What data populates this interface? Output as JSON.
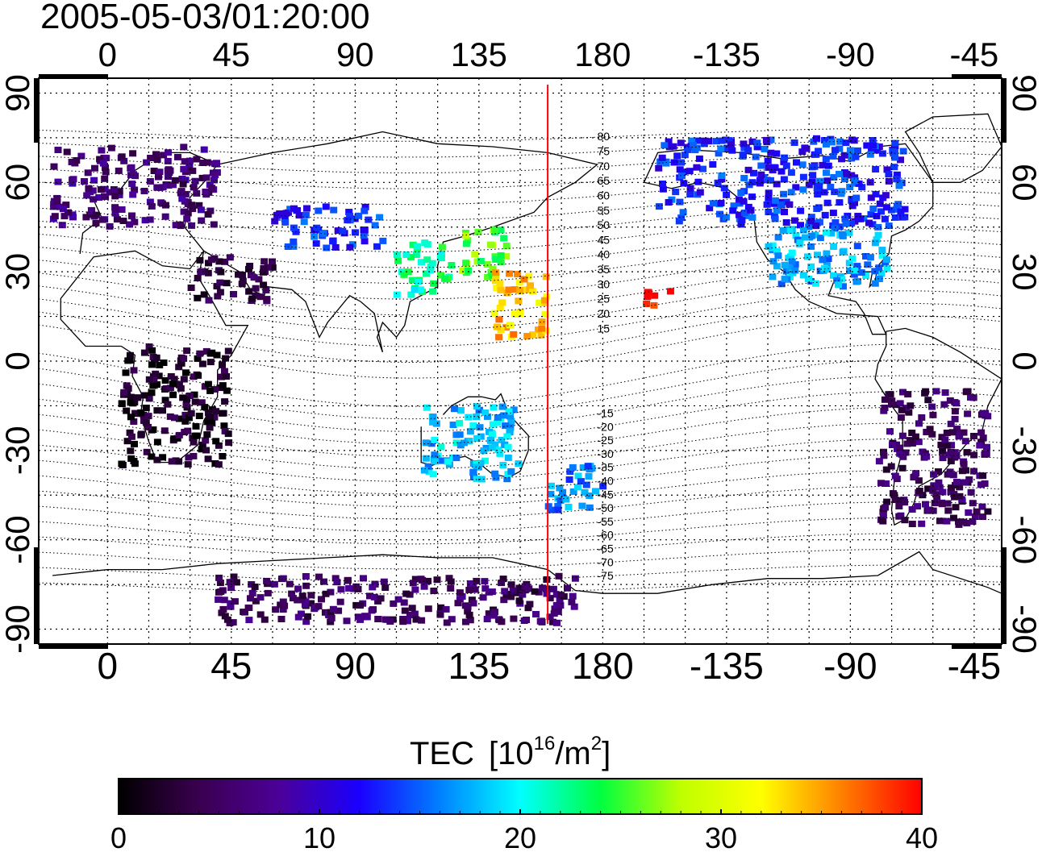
{
  "timestamp": "2005-05-03/01:20:00",
  "lon_ticks": [
    "0",
    "45",
    "90",
    "135",
    "180",
    "-135",
    "-90",
    "-45"
  ],
  "lat_ticks": [
    "90",
    "60",
    "30",
    "0",
    "-30",
    "-60",
    "-90"
  ],
  "mag_lat_labels_north": [
    "80",
    "75",
    "70",
    "65",
    "60",
    "55",
    "50",
    "45",
    "40",
    "35",
    "30",
    "25",
    "20",
    "15"
  ],
  "mag_lat_labels_south": [
    "-15",
    "-20",
    "-25",
    "-30",
    "-35",
    "-40",
    "-45",
    "-50",
    "-55",
    "-60",
    "-65",
    "-70",
    "-75"
  ],
  "colorbar": {
    "title": "TEC",
    "unit": "[10",
    "unit_exp": "16",
    "unit_mid": "/m",
    "unit_sq": "2",
    "unit_end": "]",
    "ticks": [
      "0",
      "10",
      "20",
      "30",
      "40"
    ],
    "min": 0,
    "max": 40,
    "colors": [
      "#000000",
      "#3a0050",
      "#4b0098",
      "#1a00ff",
      "#0080ff",
      "#00ffff",
      "#00ff40",
      "#bfff00",
      "#ffff00",
      "#ff8000",
      "#ff0000"
    ]
  },
  "map": {
    "lon_range": [
      -25,
      325
    ],
    "lat_range": [
      -95,
      95
    ],
    "grid": true,
    "terminator_longitude": 160,
    "terminator_color": "#ff0000"
  },
  "tec_regions": [
    {
      "region": "Europe",
      "lon": [
        -20,
        40
      ],
      "lat": [
        45,
        72
      ],
      "tec": 6
    },
    {
      "region": "Middle East",
      "lon": [
        30,
        60
      ],
      "lat": [
        20,
        35
      ],
      "tec": 3
    },
    {
      "region": "Africa",
      "lon": [
        5,
        45
      ],
      "lat": [
        -35,
        5
      ],
      "tec": 2
    },
    {
      "region": "Central Asia",
      "lon": [
        60,
        100
      ],
      "lat": [
        38,
        52
      ],
      "tec": 13
    },
    {
      "region": "China",
      "lon": [
        105,
        125
      ],
      "lat": [
        22,
        40
      ],
      "tec": 22
    },
    {
      "region": "Japan",
      "lon": [
        128,
        145
      ],
      "lat": [
        28,
        45
      ],
      "tec": 26
    },
    {
      "region": "Pacific NW",
      "lon": [
        140,
        160
      ],
      "lat": [
        8,
        30
      ],
      "tec": 34
    },
    {
      "region": "Australia",
      "lon": [
        115,
        150
      ],
      "lat": [
        -40,
        -15
      ],
      "tec": 18
    },
    {
      "region": "New Zealand",
      "lon": [
        160,
        180
      ],
      "lat": [
        -50,
        -35
      ],
      "tec": 16
    },
    {
      "region": "Hawaii",
      "lon": [
        195,
        205
      ],
      "lat": [
        18,
        24
      ],
      "tec": 39
    },
    {
      "region": "Canada/Alaska",
      "lon": [
        200,
        290
      ],
      "lat": [
        45,
        75
      ],
      "tec": 13
    },
    {
      "region": "USA",
      "lon": [
        240,
        285
      ],
      "lat": [
        25,
        45
      ],
      "tec": 17
    },
    {
      "region": "South America",
      "lon": [
        280,
        320
      ],
      "lat": [
        -55,
        -10
      ],
      "tec": 5
    },
    {
      "region": "Antarctica",
      "lon": [
        40,
        170
      ],
      "lat": [
        -88,
        -72
      ],
      "tec": 5
    }
  ]
}
